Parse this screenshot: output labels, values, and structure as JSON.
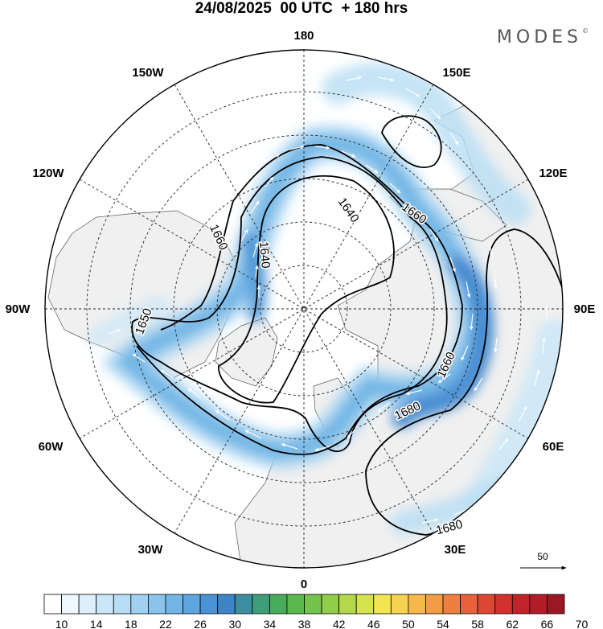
{
  "title": "24/08/2025  00 UTC  + 180 hrs",
  "brand": {
    "name": "MODES",
    "mark": "©"
  },
  "longitude_labels": [
    {
      "text": "180",
      "lon": 180
    },
    {
      "text": "150E",
      "lon": 150
    },
    {
      "text": "120E",
      "lon": 120
    },
    {
      "text": "90E",
      "lon": 90
    },
    {
      "text": "60E",
      "lon": 60
    },
    {
      "text": "30E",
      "lon": 30
    },
    {
      "text": "0",
      "lon": 0
    },
    {
      "text": "30W",
      "lon": -30
    },
    {
      "text": "60W",
      "lon": -60
    },
    {
      "text": "90W",
      "lon": -90
    },
    {
      "text": "120W",
      "lon": -120
    },
    {
      "text": "150W",
      "lon": -150
    }
  ],
  "contour_labels": [
    "1640",
    "1640",
    "1650",
    "1660",
    "1660",
    "1660",
    "1680",
    "1680"
  ],
  "vector_reference": {
    "label": "50"
  },
  "colorbar": {
    "tick_labels": [
      "10",
      "14",
      "18",
      "22",
      "26",
      "30",
      "34",
      "38",
      "42",
      "46",
      "50",
      "54",
      "58",
      "62",
      "66",
      "70"
    ],
    "colors": [
      "#ffffff",
      "#eef8fd",
      "#dcf0fb",
      "#c9e7f8",
      "#b6ddf4",
      "#a0d1f0",
      "#8ac4ec",
      "#74b5e6",
      "#5ea6df",
      "#4a94d6",
      "#3e84c8",
      "#3d8fa0",
      "#3f9e7a",
      "#48ac5c",
      "#5ab84c",
      "#74c34a",
      "#92cd4a",
      "#b4d84c",
      "#d6e24e",
      "#f2e552",
      "#f7d250",
      "#f6b84c",
      "#f39c46",
      "#ee7f40",
      "#e7613a",
      "#de4634",
      "#d2312f",
      "#c3242c",
      "#b11d29",
      "#9a1725"
    ]
  }
}
